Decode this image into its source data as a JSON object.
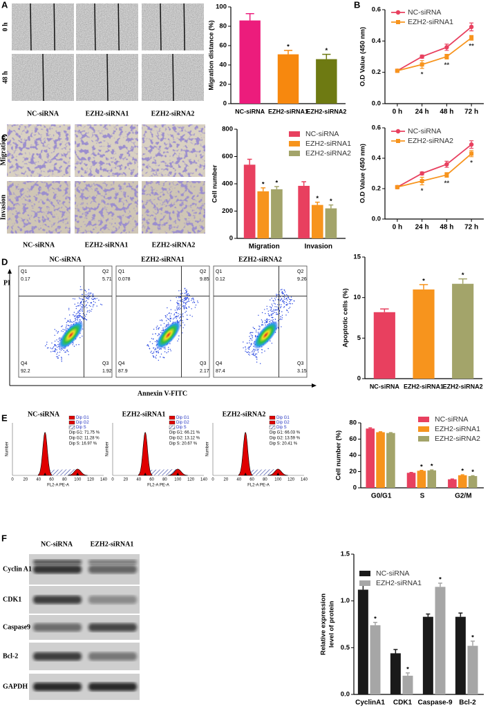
{
  "panels": [
    "A",
    "B",
    "C",
    "D",
    "E",
    "F"
  ],
  "wound_assay": {
    "timepoints": [
      "0 h",
      "48 h"
    ],
    "groups": [
      "NC-siRNA",
      "EZH2-siRNA1",
      "EZH2-siRNA2"
    ]
  },
  "transwell": {
    "rows": [
      "Migration",
      "Invasion"
    ],
    "groups": [
      "NC-siRNA",
      "EZH2-siRNA1",
      "EZH2-siRNA2"
    ]
  },
  "flow_cytometry": {
    "y_label": "PI",
    "x_label": "Annexin V-FITC",
    "plots": [
      {
        "title": "NC-siRNA",
        "quadrants": [
          [
            "Q1",
            "0.17"
          ],
          [
            "Q2",
            "5.71"
          ],
          [
            "Q4",
            "92.2"
          ],
          [
            "Q3",
            "1.92"
          ]
        ]
      },
      {
        "title": "EZH2-siRNA1",
        "quadrants": [
          [
            "Q1",
            "0.078"
          ],
          [
            "Q2",
            "9.85"
          ],
          [
            "Q4",
            "87.9"
          ],
          [
            "Q3",
            "2.17"
          ]
        ]
      },
      {
        "title": "EZH2-siRNA2",
        "quadrants": [
          [
            "Q1",
            "0.12"
          ],
          [
            "Q2",
            "9.26"
          ],
          [
            "Q4",
            "87.4"
          ],
          [
            "Q3",
            "3.15"
          ]
        ]
      }
    ]
  },
  "cell_cycle": {
    "x_label": "FL2-A PE-A",
    "y_label": "Number",
    "xticks": [
      0,
      20,
      40,
      60,
      80,
      100,
      120,
      140
    ],
    "legend": [
      "Dip G1",
      "Dip G2",
      "Dip S"
    ],
    "plots": [
      {
        "title": "NC-siRNA",
        "stats": [
          "Dip G1: 71.75 %",
          "Dip G2: 11.28 %",
          "Dip S: 16.97 %"
        ]
      },
      {
        "title": "EZH2-siRNA1",
        "stats": [
          "Dip G1: 66.21 %",
          "Dip G2: 13.12 %",
          "Dip S: 20.67 %"
        ]
      },
      {
        "title": "EZH2-siRNA2",
        "stats": [
          "Dip G1: 66.03 %",
          "Dip G2: 13.59 %",
          "Dip S: 20.41 %"
        ]
      }
    ]
  },
  "western_blot": {
    "groups": [
      "NC-siRNA",
      "EZH2-siRNA1"
    ],
    "proteins": [
      "Cyclin A1",
      "CDK1",
      "Caspase9",
      "Bcl-2",
      "GAPDH"
    ]
  },
  "chart_data": [
    {
      "type": "bar",
      "ylabel": "Migration distance (%)",
      "categories": [
        "NC-siRNA",
        "EZH2-siRNA1",
        "EZH2-siRNA2"
      ],
      "values": [
        86,
        51,
        46
      ],
      "errors": [
        7,
        4,
        5
      ],
      "colors": [
        "#ec1c7c",
        "#f7880e",
        "#6e7a12"
      ],
      "significance": [
        null,
        "*",
        "*"
      ],
      "ylim": [
        0,
        100
      ],
      "yticks": [
        0,
        20,
        40,
        60,
        80,
        100
      ]
    },
    {
      "type": "line",
      "ylabel": "O.D Value (450 nm)",
      "categories": [
        "0 h",
        "24 h",
        "48 h",
        "72 h"
      ],
      "ylim": [
        0,
        0.6
      ],
      "yticks": [
        {
          "value": 0,
          "label": "0.0"
        },
        0.2,
        0.4,
        0.6
      ],
      "legend": "top-left",
      "series": [
        {
          "name": "NC-siRNA",
          "color": "#e8405f",
          "marker": "circle",
          "values": [
            0.21,
            0.3,
            0.36,
            0.49
          ],
          "errors": [
            0.01,
            0.01,
            0.02,
            0.025
          ]
        },
        {
          "name": "EZH2-siRNA1",
          "color": "#f7941d",
          "marker": "square",
          "values": [
            0.21,
            0.25,
            0.3,
            0.42
          ],
          "errors": [
            0.01,
            0.025,
            0.015,
            0.015
          ],
          "significance": [
            null,
            "*",
            "**",
            "**"
          ]
        }
      ]
    },
    {
      "type": "bar",
      "ylabel": "Cell number",
      "categories": [
        "Migration",
        "Invasion"
      ],
      "ylim": [
        0,
        800
      ],
      "yticks": [
        0,
        200,
        400,
        600,
        800
      ],
      "legend": "top-right",
      "series": [
        {
          "name": "NC-siRNA",
          "color": "#e8405f",
          "values": [
            540,
            385
          ],
          "errors": [
            40,
            30
          ]
        },
        {
          "name": "EZH2-siRNA1",
          "color": "#f7941d",
          "values": [
            345,
            245
          ],
          "errors": [
            25,
            20
          ],
          "significance": [
            "*",
            "*"
          ]
        },
        {
          "name": "EZH2-siRNA2",
          "color": "#a3a46a",
          "values": [
            360,
            220
          ],
          "errors": [
            20,
            25
          ],
          "significance": [
            "*",
            "*"
          ]
        }
      ]
    },
    {
      "type": "line",
      "ylabel": "O.D Value (450 nm)",
      "categories": [
        "0 h",
        "24 h",
        "48 h",
        "72 h"
      ],
      "ylim": [
        0,
        0.6
      ],
      "yticks": [
        {
          "value": 0,
          "label": "0.0"
        },
        0.2,
        0.4,
        0.6
      ],
      "legend": "top-left",
      "series": [
        {
          "name": "NC-siRNA",
          "color": "#e8405f",
          "marker": "circle",
          "values": [
            0.21,
            0.3,
            0.36,
            0.49
          ],
          "errors": [
            0.01,
            0.01,
            0.02,
            0.025
          ]
        },
        {
          "name": "EZH2-siRNA2",
          "color": "#f7941d",
          "marker": "square",
          "values": [
            0.21,
            0.25,
            0.29,
            0.43
          ],
          "errors": [
            0.01,
            0.025,
            0.015,
            0.02
          ],
          "significance": [
            null,
            "*",
            "**",
            "*"
          ]
        }
      ]
    },
    {
      "type": "bar",
      "ylabel": "Apoptotic cells (%)",
      "categories": [
        "NC-siRNA",
        "EZH2-siRNA1",
        "EZH2-siRNA2"
      ],
      "values": [
        8.2,
        11.0,
        11.7
      ],
      "errors": [
        0.4,
        0.6,
        0.6
      ],
      "colors": [
        "#e8405f",
        "#f7941d",
        "#a3a46a"
      ],
      "significance": [
        null,
        "*",
        "*"
      ],
      "ylim": [
        0,
        15
      ],
      "yticks": [
        0,
        5,
        10,
        15
      ]
    },
    {
      "type": "bar",
      "ylabel": "Cell number (%)",
      "categories": [
        "G0/G1",
        "S",
        "G2/M"
      ],
      "ylim": [
        0,
        80
      ],
      "yticks": [
        0,
        20,
        40,
        60,
        80
      ],
      "legend": "top-right",
      "series": [
        {
          "name": "NC-siRNA",
          "color": "#e8405f",
          "values": [
            73,
            18.5,
            10.5
          ],
          "errors": [
            0.8,
            0.4,
            0.4
          ]
        },
        {
          "name": "EZH2-siRNA1",
          "color": "#f7941d",
          "values": [
            68.5,
            21,
            15.5
          ],
          "errors": [
            0.5,
            0.5,
            0.6
          ],
          "significance": [
            null,
            "*",
            "*"
          ]
        },
        {
          "name": "EZH2-siRNA2",
          "color": "#a3a46a",
          "values": [
            67.5,
            21.5,
            14.5
          ],
          "errors": [
            0.5,
            0.5,
            0.4
          ],
          "significance": [
            null,
            "*",
            "*"
          ]
        }
      ]
    },
    {
      "type": "bar",
      "ylabel": [
        "Relative expression",
        "level of protein"
      ],
      "categories": [
        "CyclinA1",
        "CDK1",
        "Caspase-9",
        "Bcl-2"
      ],
      "ylim": [
        0,
        1.5
      ],
      "yticks": [
        {
          "value": 0,
          "label": "0.0"
        },
        0.5,
        {
          "value": 1,
          "label": "1.0"
        },
        1.5
      ],
      "legend": "top-left",
      "series": [
        {
          "name": "NC-siRNA",
          "color": "#1a1a1a",
          "values": [
            1.12,
            0.44,
            0.83,
            0.83
          ],
          "errors": [
            0.06,
            0.04,
            0.03,
            0.04
          ]
        },
        {
          "name": "EZH2-siRNA1",
          "color": "#a6a6a6",
          "values": [
            0.74,
            0.2,
            1.15,
            0.52
          ],
          "errors": [
            0.03,
            0.03,
            0.04,
            0.05
          ],
          "significance": [
            "*",
            "*",
            "*",
            "*"
          ]
        }
      ]
    }
  ]
}
